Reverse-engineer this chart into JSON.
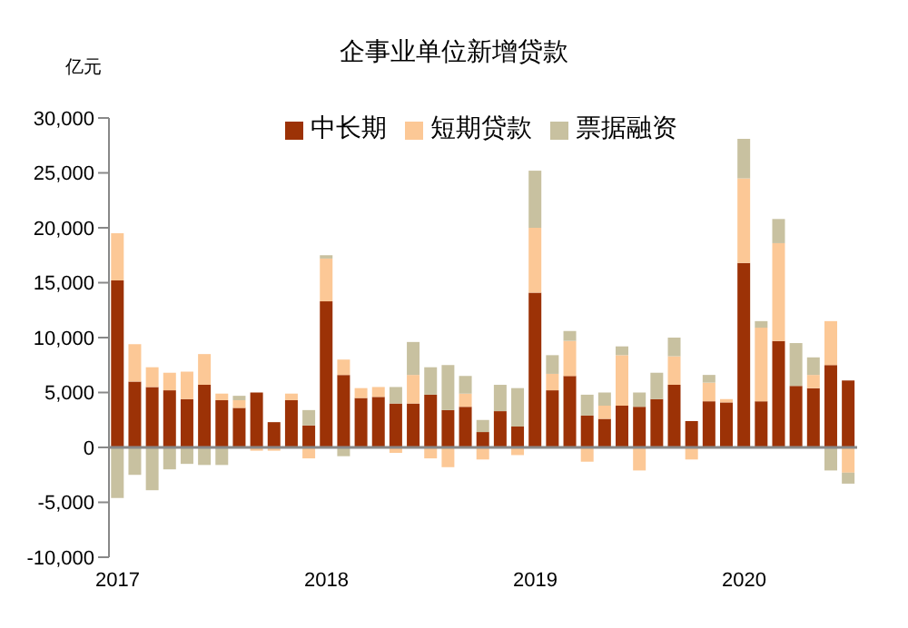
{
  "chart_data": {
    "type": "bar",
    "title": "企事业单位新增贷款",
    "ylabel": "亿元",
    "stacked": true,
    "legend": "top",
    "categories": [
      "2017",
      null,
      null,
      null,
      null,
      null,
      null,
      null,
      null,
      null,
      null,
      null,
      "2018",
      null,
      null,
      null,
      null,
      null,
      null,
      null,
      null,
      null,
      null,
      null,
      "2019",
      null,
      null,
      null,
      null,
      null,
      null,
      null,
      null,
      null,
      null,
      null,
      "2020",
      null,
      null,
      null,
      null,
      null,
      null
    ],
    "series": [
      {
        "name": "中长期",
        "color": "#9c3206",
        "values": [
          15200,
          6000,
          5500,
          5200,
          4400,
          5700,
          4300,
          3600,
          5000,
          2300,
          4300,
          2000,
          13300,
          6600,
          4500,
          4600,
          4000,
          4000,
          4800,
          3400,
          3700,
          1400,
          3300,
          1900,
          14100,
          5200,
          6500,
          2900,
          2600,
          3800,
          3700,
          4400,
          5700,
          2400,
          4200,
          4100,
          16800,
          4200,
          9700,
          5600,
          5400,
          7500,
          6100
        ]
      },
      {
        "name": "短期贷款",
        "color": "#fcc896",
        "values": [
          4300,
          3400,
          1800,
          1600,
          2500,
          2800,
          600,
          700,
          -300,
          -300,
          600,
          -1000,
          3900,
          1400,
          900,
          900,
          -500,
          2600,
          -1000,
          -1800,
          1200,
          -1100,
          null,
          -700,
          5900,
          1500,
          3200,
          -1300,
          1200,
          4600,
          -2100,
          null,
          2600,
          -1100,
          1700,
          300,
          7700,
          6700,
          8900,
          null,
          1200,
          4000,
          -2300
        ]
      },
      {
        "name": "票据融资",
        "color": "#c8c1a0",
        "values": [
          -4600,
          -2500,
          -3900,
          -2000,
          -1500,
          -1600,
          -1600,
          400,
          null,
          null,
          null,
          1400,
          300,
          -800,
          null,
          null,
          1500,
          3000,
          2500,
          4100,
          1600,
          1100,
          2400,
          3500,
          5200,
          1700,
          900,
          1900,
          1200,
          800,
          1300,
          2400,
          1700,
          null,
          700,
          null,
          3600,
          600,
          2200,
          3900,
          1600,
          -2100,
          -1000
        ]
      }
    ],
    "ylim": [
      -10000,
      30000
    ],
    "yticks": [
      {
        "value": -10000,
        "label": "-10,000"
      },
      {
        "value": -5000,
        "label": "-5,000"
      },
      0,
      {
        "value": 5000,
        "label": "5,000"
      },
      {
        "value": 10000,
        "label": "10,000"
      },
      {
        "value": 15000,
        "label": "15,000"
      },
      {
        "value": 20000,
        "label": "20,000"
      },
      {
        "value": 25000,
        "label": "25,000"
      },
      {
        "value": 30000,
        "label": "30,000"
      }
    ]
  }
}
